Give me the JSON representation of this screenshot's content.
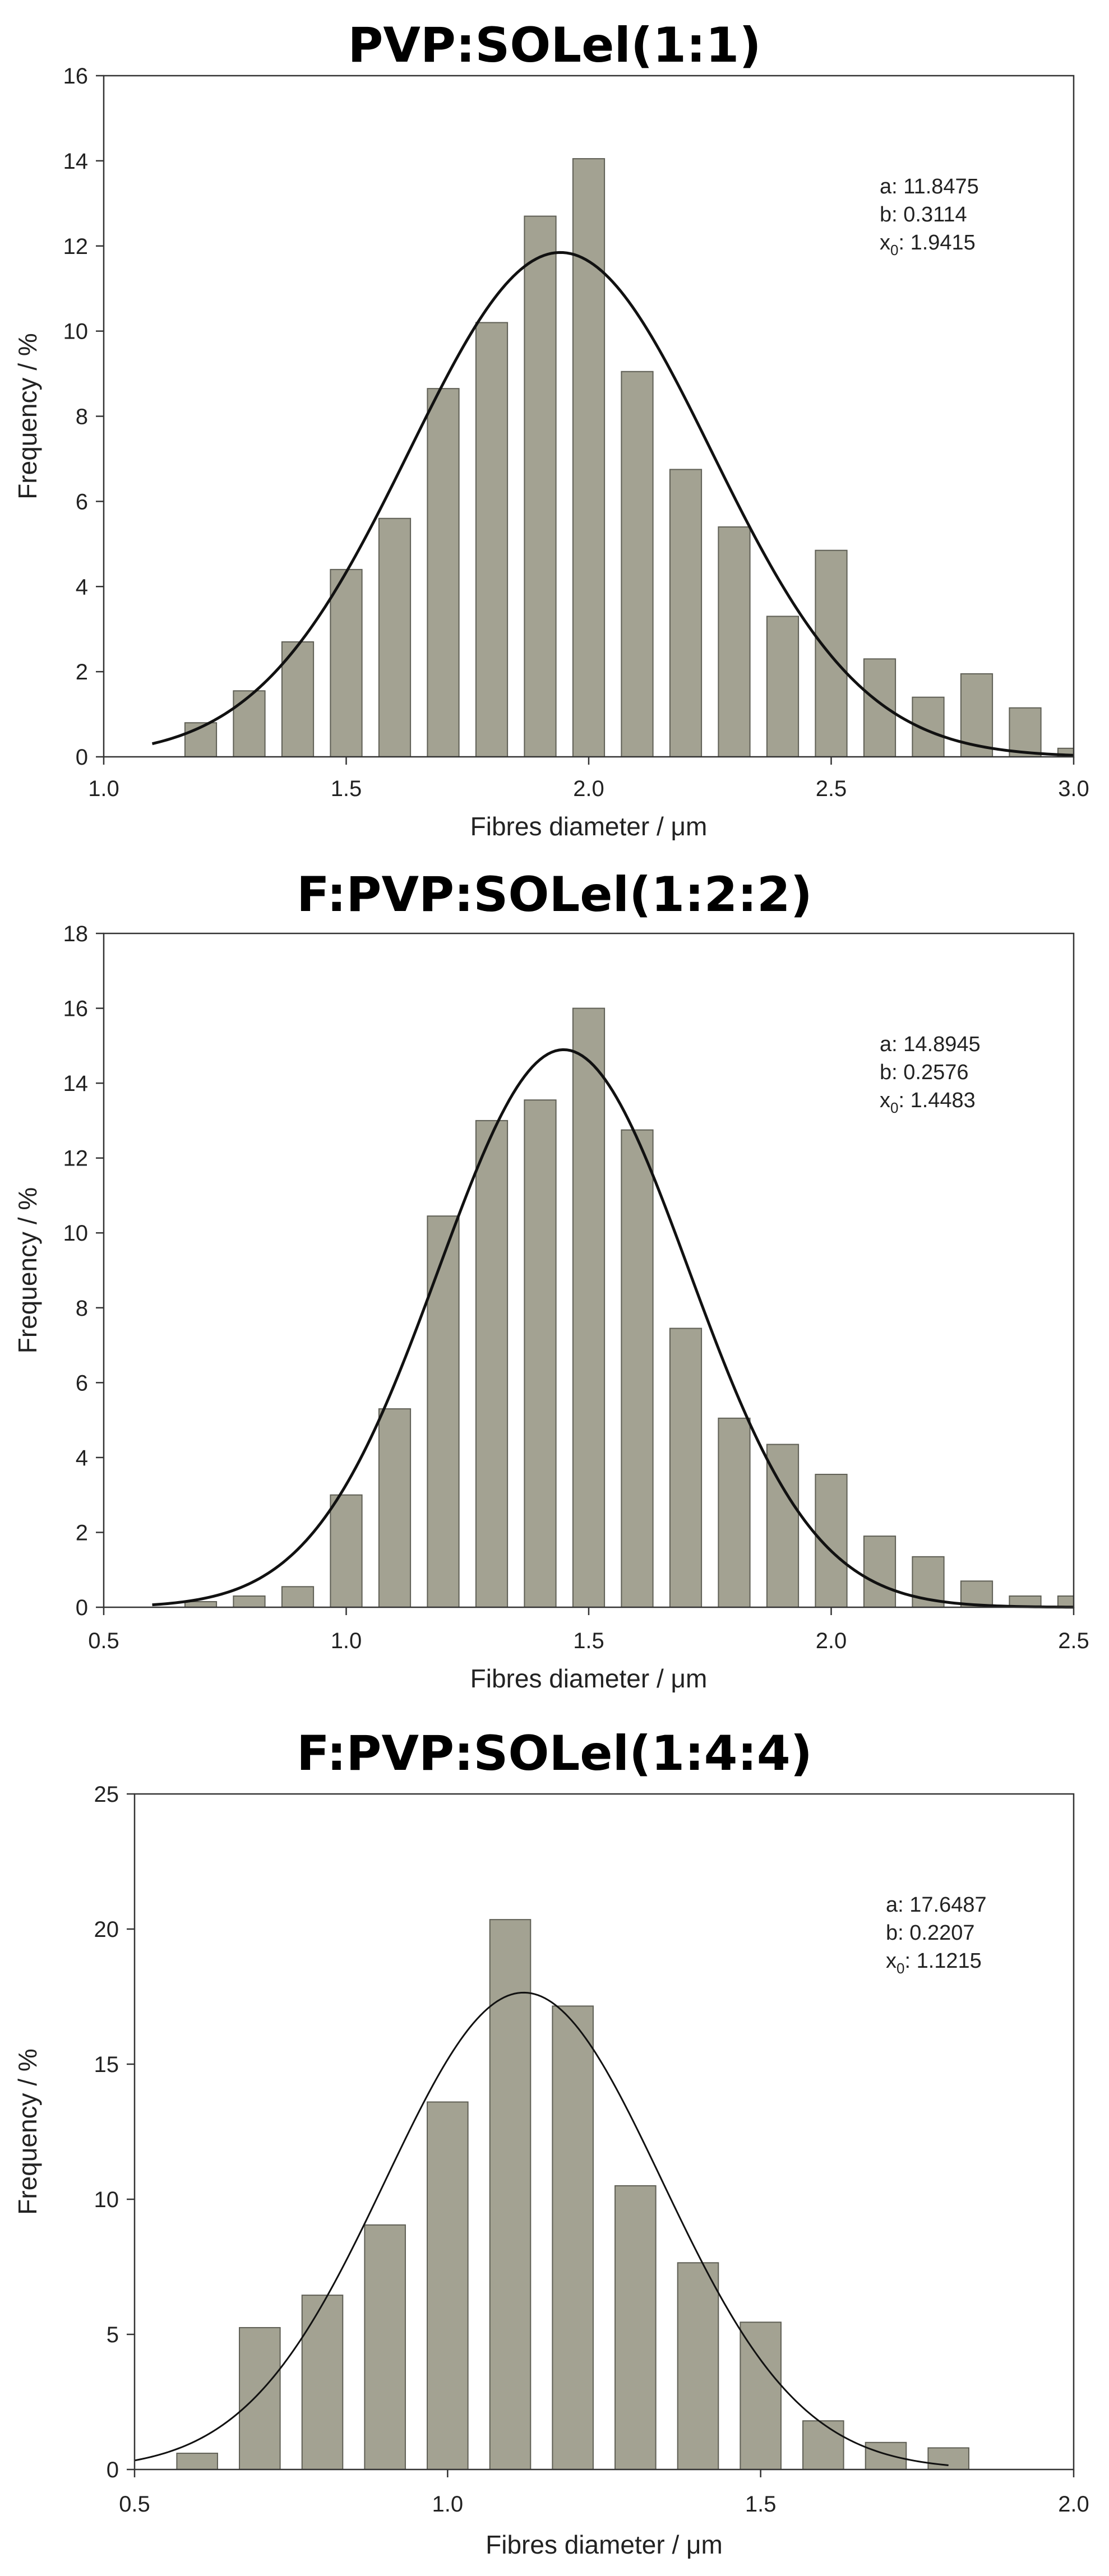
{
  "charts": [
    {
      "title": "PVP:SOLel(1:1)",
      "xlabel": "Fibres diameter / μm",
      "ylabel": "Frequency / %",
      "xlim": [
        1.0,
        3.0
      ],
      "ylim": [
        0,
        16
      ],
      "xticks": [
        1.0,
        1.5,
        2.0,
        2.5,
        3.0
      ],
      "yticks": [
        0,
        2,
        4,
        6,
        8,
        10,
        12,
        14,
        16
      ],
      "xdecimals": 1,
      "params": {
        "a": "a: 11.8475",
        "b": "b: 0.3114",
        "x0": "1.9415"
      },
      "curve": {
        "a": 11.8475,
        "b": 0.3114,
        "x0": 1.9415,
        "xmin": 1.1,
        "xmax": 3.0
      },
      "bar_width": 0.065,
      "bars": [
        [
          1.2,
          0.8
        ],
        [
          1.3,
          1.55
        ],
        [
          1.4,
          2.7
        ],
        [
          1.5,
          4.4
        ],
        [
          1.6,
          5.6
        ],
        [
          1.7,
          8.65
        ],
        [
          1.8,
          10.2
        ],
        [
          1.9,
          12.7
        ],
        [
          2.0,
          14.05
        ],
        [
          2.1,
          9.05
        ],
        [
          2.2,
          6.75
        ],
        [
          2.3,
          5.4
        ],
        [
          2.4,
          3.3
        ],
        [
          2.5,
          4.85
        ],
        [
          2.6,
          2.3
        ],
        [
          2.7,
          1.4
        ],
        [
          2.8,
          1.95
        ],
        [
          2.9,
          1.15
        ],
        [
          3.0,
          0.2
        ]
      ],
      "curve_width": 5
    },
    {
      "title": "F:PVP:SOLel(1:2:2)",
      "xlabel": "Fibres diameter / μm",
      "ylabel": "Frequency / %",
      "xlim": [
        0.5,
        2.5
      ],
      "ylim": [
        0,
        18
      ],
      "xticks": [
        0.5,
        1.0,
        1.5,
        2.0,
        2.5
      ],
      "yticks": [
        0,
        2,
        4,
        6,
        8,
        10,
        12,
        14,
        16,
        18
      ],
      "xdecimals": 1,
      "params": {
        "a": "a: 14.8945",
        "b": "b: 0.2576",
        "x0": "1.4483"
      },
      "curve": {
        "a": 14.8945,
        "b": 0.2576,
        "x0": 1.4483,
        "xmin": 0.6,
        "xmax": 2.5
      },
      "bar_width": 0.065,
      "bars": [
        [
          0.7,
          0.15
        ],
        [
          0.8,
          0.3
        ],
        [
          0.9,
          0.55
        ],
        [
          1.0,
          3.0
        ],
        [
          1.1,
          5.3
        ],
        [
          1.2,
          10.45
        ],
        [
          1.3,
          13.0
        ],
        [
          1.4,
          13.55
        ],
        [
          1.5,
          16.0
        ],
        [
          1.6,
          12.75
        ],
        [
          1.7,
          7.45
        ],
        [
          1.8,
          5.05
        ],
        [
          1.9,
          4.35
        ],
        [
          2.0,
          3.55
        ],
        [
          2.1,
          1.9
        ],
        [
          2.2,
          1.35
        ],
        [
          2.3,
          0.7
        ],
        [
          2.4,
          0.3
        ],
        [
          2.5,
          0.3
        ]
      ],
      "curve_width": 5
    },
    {
      "title": "F:PVP:SOLel(1:4:4)",
      "xlabel": "Fibres diameter / μm",
      "ylabel": "Frequency / %",
      "xlim": [
        0.5,
        2.0
      ],
      "ylim": [
        0,
        25
      ],
      "xticks": [
        0.5,
        1.0,
        1.5,
        2.0
      ],
      "yticks": [
        0,
        5,
        10,
        15,
        20,
        25
      ],
      "xdecimals": 1,
      "params": {
        "a": "a: 17.6487",
        "b": "b: 0.2207",
        "x0": "1.1215"
      },
      "curve": {
        "a": 17.6487,
        "b": 0.2207,
        "x0": 1.1215,
        "xmin": 0.5,
        "xmax": 1.8
      },
      "bar_width": 0.065,
      "bars": [
        [
          0.6,
          0.6
        ],
        [
          0.7,
          5.25
        ],
        [
          0.8,
          6.45
        ],
        [
          0.9,
          9.05
        ],
        [
          1.0,
          13.6
        ],
        [
          1.1,
          20.35
        ],
        [
          1.2,
          17.15
        ],
        [
          1.3,
          10.5
        ],
        [
          1.4,
          7.65
        ],
        [
          1.5,
          5.45
        ],
        [
          1.6,
          1.8
        ],
        [
          1.7,
          1.0
        ],
        [
          1.8,
          0.8
        ]
      ],
      "curve_width": 3
    }
  ],
  "chart_data": [
    {
      "type": "bar",
      "title": "PVP:SOLel(1:1)",
      "xlabel": "Fibres diameter / μm",
      "ylabel": "Frequency / %",
      "xlim": [
        1.0,
        3.0
      ],
      "ylim": [
        0,
        16
      ],
      "x": [
        1.2,
        1.3,
        1.4,
        1.5,
        1.6,
        1.7,
        1.8,
        1.9,
        2.0,
        2.1,
        2.2,
        2.3,
        2.4,
        2.5,
        2.6,
        2.7,
        2.8,
        2.9,
        3.0
      ],
      "values": [
        0.8,
        1.55,
        2.7,
        4.4,
        5.6,
        8.65,
        10.2,
        12.7,
        14.05,
        9.05,
        6.75,
        5.4,
        3.3,
        4.85,
        2.3,
        1.4,
        1.95,
        1.15,
        0.2
      ],
      "fit": {
        "type": "gaussian",
        "a": 11.8475,
        "b": 0.3114,
        "x0": 1.9415
      }
    },
    {
      "type": "bar",
      "title": "F:PVP:SOLel(1:2:2)",
      "xlabel": "Fibres diameter / μm",
      "ylabel": "Frequency / %",
      "xlim": [
        0.5,
        2.5
      ],
      "ylim": [
        0,
        18
      ],
      "x": [
        0.7,
        0.8,
        0.9,
        1.0,
        1.1,
        1.2,
        1.3,
        1.4,
        1.5,
        1.6,
        1.7,
        1.8,
        1.9,
        2.0,
        2.1,
        2.2,
        2.3,
        2.4,
        2.5
      ],
      "values": [
        0.15,
        0.3,
        0.55,
        3.0,
        5.3,
        10.45,
        13.0,
        13.55,
        16.0,
        12.75,
        7.45,
        5.05,
        4.35,
        3.55,
        1.9,
        1.35,
        0.7,
        0.3,
        0.3
      ],
      "fit": {
        "type": "gaussian",
        "a": 14.8945,
        "b": 0.2576,
        "x0": 1.4483
      }
    },
    {
      "type": "bar",
      "title": "F:PVP:SOLel(1:4:4)",
      "xlabel": "Fibres diameter / μm",
      "ylabel": "Frequency / %",
      "xlim": [
        0.5,
        2.0
      ],
      "ylim": [
        0,
        25
      ],
      "x": [
        0.6,
        0.7,
        0.8,
        0.9,
        1.0,
        1.1,
        1.2,
        1.3,
        1.4,
        1.5,
        1.6,
        1.7,
        1.8
      ],
      "values": [
        0.6,
        5.25,
        6.45,
        9.05,
        13.6,
        20.35,
        17.15,
        10.5,
        7.65,
        5.45,
        1.8,
        1.0,
        0.8
      ],
      "fit": {
        "type": "gaussian",
        "a": 17.6487,
        "b": 0.2207,
        "x0": 1.1215
      }
    }
  ]
}
